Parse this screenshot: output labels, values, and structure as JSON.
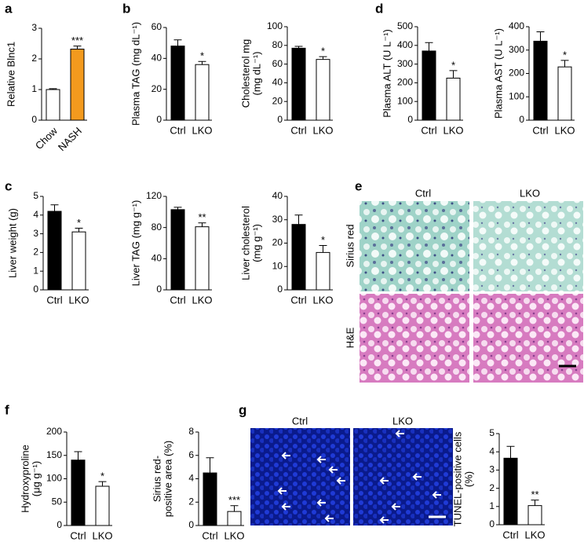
{
  "panels": [
    "a",
    "b",
    "d",
    "c",
    "e",
    "f",
    "g"
  ],
  "chart_data": [
    {
      "type": "bar",
      "ylabel": [
        "Relative Blnc1"
      ],
      "categories": [
        "Chow",
        "NASH"
      ],
      "values": [
        1.0,
        2.32
      ],
      "errors": [
        0.03,
        0.1
      ],
      "colors": [
        "#ffffff",
        "#f39a1e"
      ],
      "annotation": "***",
      "ylim": [
        0,
        3
      ],
      "yticks": [
        0,
        1,
        2,
        3
      ]
    },
    {
      "type": "bar",
      "ylabel": [
        "Plasma TAG (mg dL⁻¹)"
      ],
      "categories": [
        "Ctrl",
        "LKO"
      ],
      "values": [
        48,
        36
      ],
      "errors": [
        4,
        2
      ],
      "colors": [
        "#000000",
        "#ffffff"
      ],
      "annotation": "*",
      "ylim": [
        0,
        60
      ],
      "yticks": [
        0,
        20,
        40,
        60
      ]
    },
    {
      "type": "bar",
      "ylabel": [
        "Cholesterol mg",
        "(mg dL⁻¹)"
      ],
      "categories": [
        "Ctrl",
        "LKO"
      ],
      "values": [
        77,
        65
      ],
      "errors": [
        2,
        3
      ],
      "colors": [
        "#000000",
        "#ffffff"
      ],
      "annotation": "*",
      "ylim": [
        0,
        100
      ],
      "yticks": [
        0,
        20,
        40,
        60,
        80,
        100
      ]
    },
    {
      "type": "bar",
      "ylabel": [
        "Plasma ALT (U L⁻¹)"
      ],
      "categories": [
        "Ctrl",
        "LKO"
      ],
      "values": [
        370,
        225
      ],
      "errors": [
        45,
        40
      ],
      "colors": [
        "#000000",
        "#ffffff"
      ],
      "annotation": "*",
      "ylim": [
        0,
        500
      ],
      "yticks": [
        0,
        100,
        200,
        300,
        400,
        500
      ]
    },
    {
      "type": "bar",
      "ylabel": [
        "Plasma AST (U L⁻¹)"
      ],
      "categories": [
        "Ctrl",
        "LKO"
      ],
      "values": [
        338,
        228
      ],
      "errors": [
        40,
        28
      ],
      "colors": [
        "#000000",
        "#ffffff"
      ],
      "annotation": "*",
      "ylim": [
        0,
        400
      ],
      "yticks": [
        0,
        100,
        200,
        300,
        400
      ]
    },
    {
      "type": "bar",
      "ylabel": [
        "Liver weight (g)"
      ],
      "categories": [
        "Ctrl",
        "LKO"
      ],
      "values": [
        4.2,
        3.1
      ],
      "errors": [
        0.35,
        0.2
      ],
      "colors": [
        "#000000",
        "#ffffff"
      ],
      "annotation": "*",
      "ylim": [
        0,
        5
      ],
      "yticks": [
        0,
        1,
        2,
        3,
        4,
        5
      ]
    },
    {
      "type": "bar",
      "ylabel": [
        "Liver TAG (mg g⁻¹)"
      ],
      "categories": [
        "Ctrl",
        "LKO"
      ],
      "values": [
        103,
        81
      ],
      "errors": [
        3,
        5
      ],
      "colors": [
        "#000000",
        "#ffffff"
      ],
      "annotation": "**",
      "ylim": [
        0,
        120
      ],
      "yticks": [
        0,
        40,
        80,
        120
      ]
    },
    {
      "type": "bar",
      "ylabel": [
        "Liver cholesterol",
        "(mg g⁻¹)"
      ],
      "categories": [
        "Ctrl",
        "LKO"
      ],
      "values": [
        28,
        16
      ],
      "errors": [
        4,
        3
      ],
      "colors": [
        "#000000",
        "#ffffff"
      ],
      "annotation": "*",
      "ylim": [
        0,
        40
      ],
      "yticks": [
        0,
        10,
        20,
        30,
        40
      ]
    },
    {
      "type": "bar",
      "ylabel": [
        "Hydroxyproline",
        "(μg g⁻¹)"
      ],
      "categories": [
        "Ctrl",
        "LKO"
      ],
      "values": [
        140,
        84
      ],
      "errors": [
        18,
        10
      ],
      "colors": [
        "#000000",
        "#ffffff"
      ],
      "annotation": "*",
      "ylim": [
        0,
        200
      ],
      "yticks": [
        0,
        50,
        100,
        150,
        200
      ]
    },
    {
      "type": "bar",
      "ylabel": [
        "Sirius red-",
        "positive area (%)"
      ],
      "categories": [
        "Ctrl",
        "LKO"
      ],
      "values": [
        4.5,
        1.2
      ],
      "errors": [
        1.3,
        0.5
      ],
      "colors": [
        "#000000",
        "#ffffff"
      ],
      "annotation": "***",
      "ylim": [
        0,
        8
      ],
      "yticks": [
        0,
        2,
        4,
        6,
        8
      ]
    },
    {
      "type": "bar",
      "ylabel": [
        "TUNEL-positive cells",
        "(%)"
      ],
      "categories": [
        "Ctrl",
        "LKO"
      ],
      "values": [
        3.65,
        1.05
      ],
      "errors": [
        0.65,
        0.3
      ],
      "colors": [
        "#000000",
        "#ffffff"
      ],
      "annotation": "**",
      "ylim": [
        0,
        5
      ],
      "yticks": [
        0,
        1,
        2,
        3,
        4,
        5
      ]
    }
  ],
  "micrographs": {
    "e": {
      "columns": [
        "Ctrl",
        "LKO"
      ],
      "rows": [
        "Sirius red",
        "H&E"
      ]
    },
    "g": {
      "columns": [
        "Ctrl",
        "LKO"
      ]
    }
  }
}
